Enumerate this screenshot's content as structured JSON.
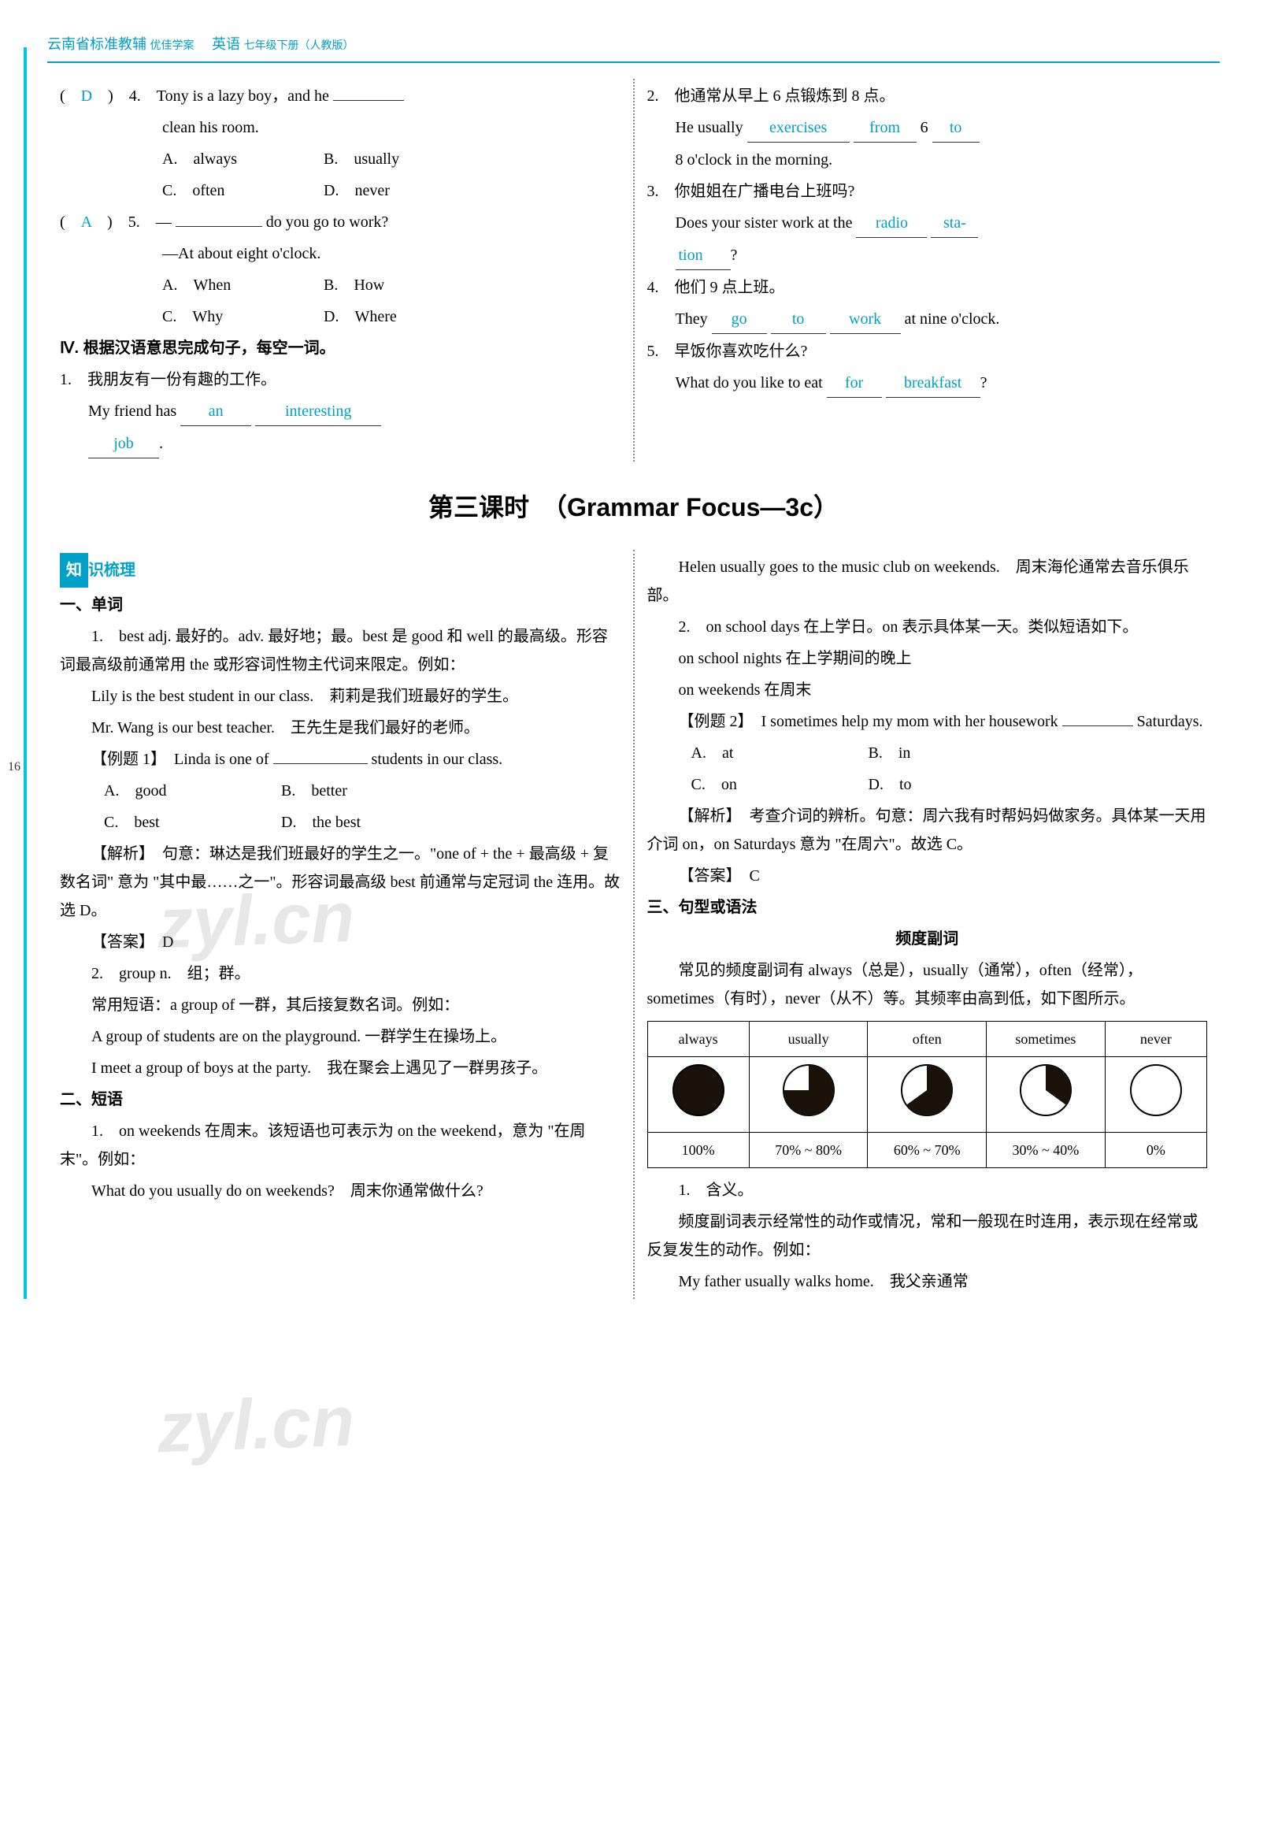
{
  "header": {
    "left": "云南省标准教辅",
    "mid": "优佳学案",
    "subj": "英语",
    "grade": "七年级下册（人教版）"
  },
  "page_number": "16",
  "watermark": "zyl.cn",
  "q4": {
    "ans": "D",
    "num": "4.",
    "stem_a": "Tony is a lazy boy，and he",
    "stem_b": "clean his room.",
    "optA": "A.　always",
    "optB": "B.　usually",
    "optC": "C.　often",
    "optD": "D.　never"
  },
  "q5": {
    "ans": "A",
    "num": "5.",
    "stem_a": "—",
    "stem_b": "do you go to work?",
    "stem_c": "—At about eight o'clock.",
    "optA": "A.　When",
    "optB": "B.　How",
    "optC": "C.　Why",
    "optD": "D.　Where"
  },
  "sec4": {
    "title": "Ⅳ. 根据汉语意思完成句子，每空一词。",
    "q1_cn": "1.　我朋友有一份有趣的工作。",
    "q1_en_a": "My friend has",
    "q1_b1": "an",
    "q1_b2": "interesting",
    "q1_b3": "job",
    "q1_en_b": ".",
    "q2_cn": "2.　他通常从早上 6 点锻炼到 8 点。",
    "q2_en_a": "He usually",
    "q2_b1": "exercises",
    "q2_b2": "from",
    "q2_en_b": "6",
    "q2_b3": "to",
    "q2_en_c": "8 o'clock in the morning.",
    "q3_cn": "3.　你姐姐在广播电台上班吗?",
    "q3_en_a": "Does your sister work at the",
    "q3_b1": "radio",
    "q3_b2": "sta-",
    "q3_b2b": "tion",
    "q3_en_b": "?",
    "q4_cn": "4.　他们 9 点上班。",
    "q4_en_a": "They",
    "q4_b1": "go",
    "q4_b2": "to",
    "q4_b3": "work",
    "q4_en_b": "at nine o'clock.",
    "q5_cn": "5.　早饭你喜欢吃什么?",
    "q5_en_a": "What do you like to eat",
    "q5_b1": "for",
    "q5_b2": "breakfast",
    "q5_en_b": "?"
  },
  "lesson_title": "第三课时　（Grammar Focus—3c）",
  "zhishi": {
    "box": "知",
    "rest": "识梳理"
  },
  "danci": {
    "title": "一、单词",
    "p1": "1.　best adj. 最好的。adv. 最好地；最。best 是 good 和 well 的最高级。形容词最高级前通常用 the 或形容词性物主代词来限定。例如：",
    "p2": "Lily is the best student in our class.　莉莉是我们班最好的学生。",
    "p3": "Mr. Wang is our best teacher.　王先生是我们最好的老师。",
    "ex1_a": "【例题 1】　Linda is one of",
    "ex1_b": "students in our class.",
    "optA": "A.　good",
    "optB": "B.　better",
    "optC": "C.　best",
    "optD": "D.　the best",
    "exp": "【解析】　句意：琳达是我们班最好的学生之一。\"one of + the + 最高级 + 复数名词\" 意为 \"其中最……之一\"。形容词最高级 best 前通常与定冠词 the 连用。故选 D。",
    "ansLabel": "【答案】　D",
    "p4": "2.　group n.　组；群。",
    "p5": "常用短语：a group of 一群，其后接复数名词。例如：",
    "p6": "A group of students are on the playground. 一群学生在操场上。",
    "p7": "I meet a group of boys at the party.　我在聚会上遇见了一群男孩子。"
  },
  "duanyu": {
    "title": "二、短语",
    "p1": "1.　on weekends 在周末。该短语也可表示为 on the weekend，意为 \"在周末\"。例如：",
    "p2": "What do you usually do on weekends?　周末你通常做什么?"
  },
  "right": {
    "p1": "Helen usually goes to the music club on weekends.　周末海伦通常去音乐俱乐部。",
    "p2": "2.　on school days 在上学日。on 表示具体某一天。类似短语如下。",
    "p3": "on school nights 在上学期间的晚上",
    "p4": "on weekends 在周末",
    "ex2_a": "【例题 2】　I sometimes help my mom with her housework",
    "ex2_b": "Saturdays.",
    "optA": "A.　at",
    "optB": "B.　in",
    "optC": "C.　on",
    "optD": "D.　to",
    "exp": "【解析】　考查介词的辨析。句意：周六我有时帮妈妈做家务。具体某一天用介词 on，on Saturdays 意为 \"在周六\"。故选 C。",
    "ansLabel": "【答案】　C"
  },
  "jufa": {
    "title": "三、句型或语法",
    "subtitle": "频度副词",
    "p1": "常见的频度副词有 always（总是），usually（通常），often（经常），sometimes（有时），never（从不）等。其频率由高到低，如下图所示。",
    "p2": "1.　含义。",
    "p3": "频度副词表示经常性的动作或情况，常和一般现在时连用，表示现在经常或反复发生的动作。例如：",
    "p4": "My father usually walks home.　我父亲通常"
  },
  "freq": {
    "headers": [
      "always",
      "usually",
      "often",
      "sometimes",
      "never"
    ],
    "percents": [
      "100%",
      "70% ~ 80%",
      "60% ~ 70%",
      "30% ~ 40%",
      "0%"
    ],
    "fill": [
      100,
      75,
      65,
      35,
      0
    ],
    "colors": {
      "fill": "#1a1209",
      "stroke": "#000000"
    }
  }
}
